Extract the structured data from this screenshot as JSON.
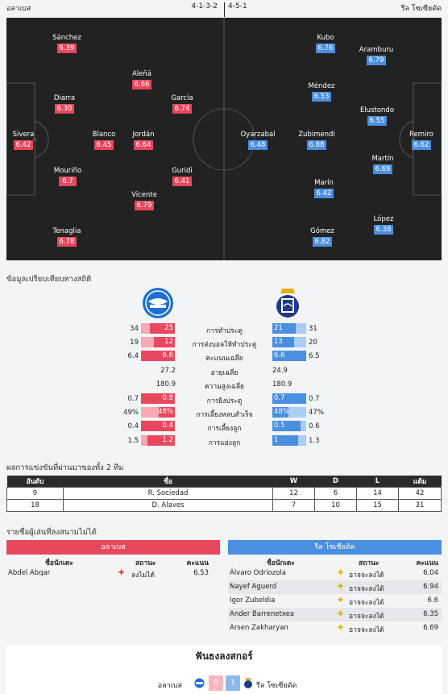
{
  "header": {
    "home": "อลาเบส",
    "away": "รีล โซเซียดัด",
    "home_form": "4-1-3-2",
    "away_form": "4-5-1"
  },
  "home_players": [
    {
      "name": "Sánchez",
      "rating": "6.39"
    },
    {
      "name": "Aleñá",
      "rating": "6.66"
    },
    {
      "name": "Diarra",
      "rating": "6.30"
    },
    {
      "name": "García",
      "rating": "6.74"
    },
    {
      "name": "Sivera",
      "rating": "6.42"
    },
    {
      "name": "Blanco",
      "rating": "6.45"
    },
    {
      "name": "Jordán",
      "rating": "6.64"
    },
    {
      "name": "Mouriño",
      "rating": "6.7"
    },
    {
      "name": "Guridi",
      "rating": "6.41"
    },
    {
      "name": "Vicente",
      "rating": "6.79"
    },
    {
      "name": "Tenaglia",
      "rating": "6.78"
    }
  ],
  "away_players": [
    {
      "name": "Kubo",
      "rating": "6.76"
    },
    {
      "name": "Aramburu",
      "rating": "6.79"
    },
    {
      "name": "Méndez",
      "rating": "6.53"
    },
    {
      "name": "Elustondo",
      "rating": "6.55"
    },
    {
      "name": "Oyarzabal",
      "rating": "6.48"
    },
    {
      "name": "Zubimendi",
      "rating": "6.88"
    },
    {
      "name": "Remiro",
      "rating": "6.62"
    },
    {
      "name": "Martín",
      "rating": "6.69"
    },
    {
      "name": "Marín",
      "rating": "6.42"
    },
    {
      "name": "López",
      "rating": "6.38"
    },
    {
      "name": "Gómez",
      "rating": "6.82"
    }
  ],
  "stats_title": "ข้อมูลเปรียบเทียบทางสถิติ",
  "stats": [
    {
      "home_total": "34",
      "home": "25",
      "label": "การทำประตู",
      "away": "21",
      "away_total": "31",
      "hp": 0.73,
      "ap": 0.68
    },
    {
      "home_total": "19",
      "home": "12",
      "label": "การส่งบอลให้ทำประตู",
      "away": "13",
      "away_total": "20",
      "hp": 0.63,
      "ap": 0.65
    },
    {
      "home_total": "6.4",
      "home": "6.6",
      "label": "คะแนนเฉลี่ย",
      "away": "6.6",
      "away_total": "6.5",
      "hp": 1,
      "ap": 1
    },
    {
      "home": "27.2",
      "label": "อายุเฉลี่ย",
      "away": "24.9"
    },
    {
      "home": "180.9",
      "label": "ความสูงเฉลี่ย",
      "away": "180.9"
    },
    {
      "home_total": "0.7",
      "home": "0.8",
      "label": "การยิงประตู",
      "away": "0.7",
      "away_total": "0.7",
      "hp": 1,
      "ap": 1
    },
    {
      "home_total": "49%",
      "home": "48%",
      "label": "การเลี้ยงหลบสำเร็จ",
      "away": "48%",
      "away_total": "47%",
      "hp": 0.48,
      "ap": 0.48
    },
    {
      "home_total": "0.4",
      "home": "0.4",
      "label": "การเลี้ยงลูก",
      "away": "0.5",
      "away_total": "0.6",
      "hp": 1,
      "ap": 0.83
    },
    {
      "home_total": "1.5",
      "home": "1.2",
      "label": "การแย่งลูก",
      "away": "1",
      "away_total": "1.3",
      "hp": 0.8,
      "ap": 0.77
    }
  ],
  "league_title": "ผลการแข่งขันที่ผ่านมาของทั้ง 2 ทีม",
  "league_headers": [
    "อันดับ",
    "ชื่อ",
    "W",
    "D",
    "L",
    "แต้ม"
  ],
  "league_rows": [
    [
      "9",
      "R. Sociedad",
      "12",
      "6",
      "14",
      "42"
    ],
    [
      "18",
      "D. Alaves",
      "7",
      "10",
      "15",
      "31"
    ]
  ],
  "missing_title": "รายชื่อผู้เล่นที่ลงสนามไม่ได้",
  "missing_cols": [
    "ชื่อนักเตะ",
    "สถานะ",
    "คะแนน"
  ],
  "home_missing": [
    {
      "name": "Abdel Abqar",
      "status": "ลงไม่ได้",
      "rating": "6.53"
    }
  ],
  "away_missing": [
    {
      "name": "Álvaro Odriozola",
      "status": "อาจจะลงได้",
      "rating": "6.04"
    },
    {
      "name": "Nayef Aguerd",
      "status": "อาจจะลงได้",
      "rating": "6.94"
    },
    {
      "name": "Igor Zubeldia",
      "status": "อาจจะลงได้",
      "rating": "6.6"
    },
    {
      "name": "Ander Barrenetxea",
      "status": "อาจจะลงได้",
      "rating": "6.35"
    },
    {
      "name": "Arsen Zakharyan",
      "status": "อาจจะลงได้",
      "rating": "6.69"
    }
  ],
  "prediction": {
    "title": "ฟันธงลงสกอร์",
    "home": "อลาเบส",
    "home_score": "0",
    "away_score": "1",
    "away": "รีล โซเซียดัด"
  },
  "colors": {
    "home": "#e8475e",
    "away": "#4a8fe0"
  }
}
